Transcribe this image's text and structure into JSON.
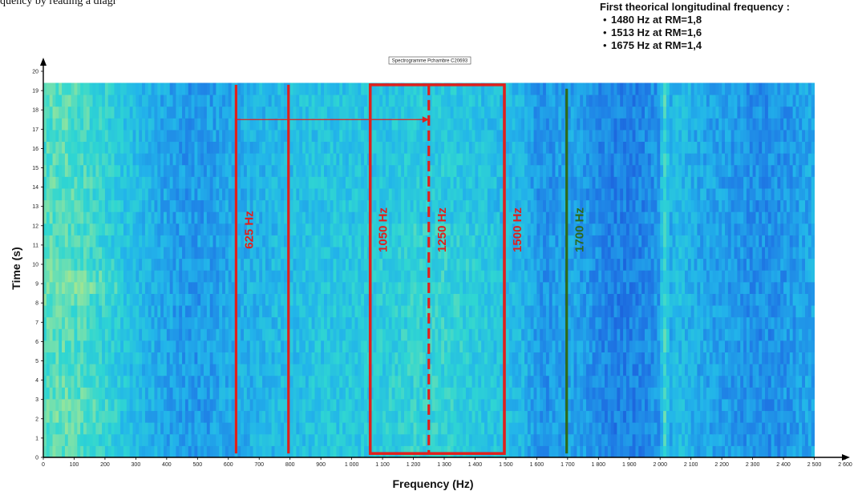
{
  "caption_top": "quency by reading a diagr",
  "notes": {
    "heading": "First theorical longitudinal frequency :",
    "items": [
      "1480 Hz at RM=1,8",
      "1513 Hz at RM=1,6",
      "1675 Hz at RM=1,4"
    ]
  },
  "chart_data": {
    "type": "heatmap",
    "title": "Spectrogramme Pchambre C20693",
    "xlabel": "Frequency (Hz)",
    "ylabel": "Time (s)",
    "xlim": [
      0,
      2600
    ],
    "ylim": [
      0,
      20
    ],
    "data_x_range": [
      0,
      2500
    ],
    "data_y_range": [
      0,
      19.4
    ],
    "x_ticks": [
      0,
      100,
      200,
      300,
      400,
      500,
      600,
      700,
      800,
      900,
      1000,
      1100,
      1200,
      1300,
      1400,
      1500,
      1600,
      1700,
      1800,
      1900,
      2000,
      2100,
      2200,
      2300,
      2400,
      2500,
      2600
    ],
    "x_tick_labels": [
      "0",
      "100",
      "200",
      "300",
      "400",
      "500",
      "600",
      "700",
      "800",
      "900",
      "1 000",
      "1 100",
      "1 200",
      "1 300",
      "1 400",
      "1 500",
      "1 600",
      "1 700",
      "1 800",
      "1 900",
      "2 000",
      "2 100",
      "2 200",
      "2 300",
      "2 400",
      "2 500",
      "2 600"
    ],
    "y_ticks": [
      0,
      1,
      2,
      3,
      4,
      5,
      6,
      7,
      8,
      9,
      10,
      11,
      12,
      13,
      14,
      15,
      16,
      17,
      18,
      19,
      20
    ],
    "y_tick_labels": [
      "0",
      "1",
      "2",
      "3",
      "4",
      "5",
      "6",
      "7",
      "8",
      "9",
      "10",
      "11",
      "12",
      "13",
      "14",
      "15",
      "16",
      "17",
      "18",
      "19",
      "20"
    ],
    "colormap": [
      "#1a4fd6",
      "#1f7fe6",
      "#22b4ea",
      "#2fd6d2",
      "#8ee4a0",
      "#c9ea6a"
    ],
    "intensity_notes": "energy concentrated at low frequencies (0-250 Hz) and around 1100-1450 Hz; narrow bright line near 2015 Hz",
    "annotations": {
      "lines": [
        {
          "label": "625 Hz",
          "x": 625,
          "y_range": [
            0.2,
            19.3
          ],
          "color": "#e0201c",
          "style": "solid"
        },
        {
          "label": "",
          "x": 795,
          "y_range": [
            0.2,
            19.3
          ],
          "color": "#e0201c",
          "style": "solid"
        },
        {
          "label": "1050 Hz",
          "x": 1060,
          "y_range": [
            0.2,
            19.3
          ],
          "color": "#e0201c",
          "style": "solid"
        },
        {
          "label": "1250 Hz",
          "x": 1250,
          "y_range": [
            0.2,
            19.3
          ],
          "color": "#e0201c",
          "style": "dashed"
        },
        {
          "label": "1500 Hz",
          "x": 1495,
          "y_range": [
            0.2,
            19.3
          ],
          "color": "#e0201c",
          "style": "solid"
        },
        {
          "label": "1700 Hz",
          "x": 1697,
          "y_range": [
            0.2,
            19.1
          ],
          "color": "#2e6a1a",
          "style": "solid"
        }
      ],
      "box": {
        "x_range": [
          1060,
          1495
        ],
        "y_range": [
          0.2,
          19.3
        ],
        "color": "#e0201c"
      },
      "arrow": {
        "from": [
          625,
          17.5
        ],
        "to": [
          1250,
          17.5
        ],
        "color": "#e0201c"
      }
    }
  }
}
